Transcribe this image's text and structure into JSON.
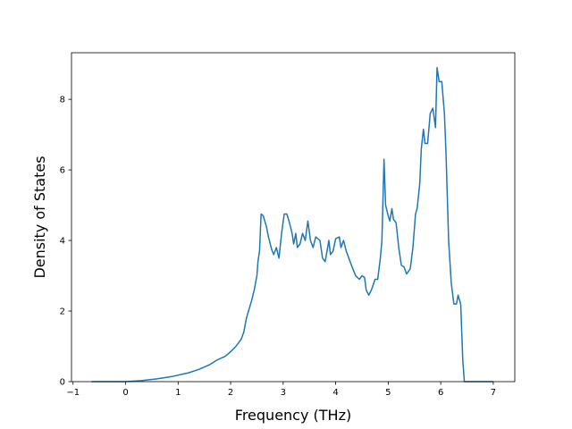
{
  "chart_data": {
    "type": "line",
    "xlabel": "Frequency (THz)",
    "ylabel": "Density of States",
    "xlim": [
      -1.03,
      7.41
    ],
    "ylim": [
      0,
      9.32
    ],
    "xticks": [
      {
        "value": -1,
        "label": "−1"
      },
      0,
      1,
      2,
      3,
      4,
      5,
      6,
      7
    ],
    "yticks": [
      0,
      2,
      4,
      6,
      8
    ],
    "grid": false,
    "series": [
      {
        "color": "#1f77b4",
        "x": [
          -0.65,
          0,
          0.3,
          0.6,
          0.9,
          1.2,
          1.4,
          1.6,
          1.75,
          1.9,
          2.0,
          2.1,
          2.2,
          2.25,
          2.3,
          2.4,
          2.45,
          2.5,
          2.52,
          2.55,
          2.58,
          2.62,
          2.68,
          2.72,
          2.78,
          2.82,
          2.87,
          2.92,
          2.97,
          3.02,
          3.07,
          3.12,
          3.17,
          3.2,
          3.24,
          3.27,
          3.32,
          3.37,
          3.42,
          3.47,
          3.52,
          3.57,
          3.62,
          3.7,
          3.75,
          3.8,
          3.87,
          3.9,
          3.95,
          4.0,
          4.07,
          4.1,
          4.15,
          4.2,
          4.3,
          4.38,
          4.45,
          4.5,
          4.55,
          4.58,
          4.63,
          4.68,
          4.75,
          4.8,
          4.85,
          4.88,
          4.92,
          4.95,
          5.0,
          5.03,
          5.07,
          5.1,
          5.15,
          5.2,
          5.25,
          5.3,
          5.35,
          5.42,
          5.47,
          5.52,
          5.55,
          5.6,
          5.63,
          5.67,
          5.7,
          5.75,
          5.8,
          5.85,
          5.9,
          5.93,
          5.97,
          6.02,
          6.07,
          6.1,
          6.15,
          6.2,
          6.25,
          6.3,
          6.33,
          6.38,
          6.42,
          6.45,
          7.0
        ],
        "values": [
          0,
          0,
          0.03,
          0.08,
          0.15,
          0.25,
          0.35,
          0.48,
          0.62,
          0.72,
          0.85,
          1.0,
          1.2,
          1.4,
          1.8,
          2.3,
          2.6,
          3.0,
          3.4,
          3.7,
          4.75,
          4.7,
          4.4,
          4.1,
          3.75,
          3.6,
          3.8,
          3.5,
          4.2,
          4.75,
          4.75,
          4.5,
          4.2,
          3.9,
          4.2,
          3.8,
          3.9,
          4.2,
          4.0,
          4.55,
          4.0,
          3.8,
          4.1,
          4.0,
          3.5,
          3.4,
          4.0,
          3.6,
          3.7,
          4.05,
          4.1,
          3.8,
          4.0,
          3.7,
          3.3,
          3.0,
          2.9,
          3.0,
          2.95,
          2.6,
          2.45,
          2.6,
          2.9,
          2.9,
          3.5,
          4.0,
          6.3,
          5.0,
          4.7,
          4.55,
          4.9,
          4.6,
          4.5,
          3.8,
          3.3,
          3.25,
          3.05,
          3.2,
          3.8,
          4.75,
          4.9,
          5.6,
          6.6,
          7.15,
          6.75,
          6.75,
          7.6,
          7.75,
          7.2,
          8.9,
          8.5,
          8.5,
          7.6,
          6.5,
          4.0,
          2.8,
          2.2,
          2.2,
          2.45,
          2.2,
          0.6,
          0,
          0
        ]
      }
    ]
  }
}
